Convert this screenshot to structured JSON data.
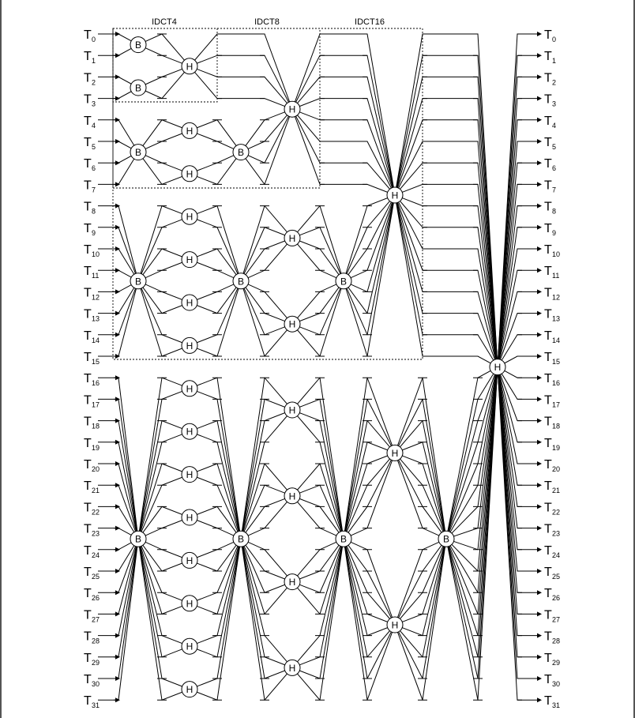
{
  "diagram": {
    "stages": [
      "IDCT4",
      "IDCT8",
      "IDCT16"
    ],
    "input_letter": "T",
    "output_letter": "T",
    "indices": [
      "0",
      "1",
      "2",
      "3",
      "4",
      "5",
      "6",
      "7",
      "8",
      "9",
      "10",
      "11",
      "12",
      "13",
      "14",
      "15",
      "16",
      "17",
      "18",
      "19",
      "20",
      "21",
      "22",
      "23",
      "24",
      "25",
      "26",
      "27",
      "28",
      "29",
      "30",
      "31"
    ],
    "node_types": {
      "H": "H",
      "B": "B"
    }
  }
}
